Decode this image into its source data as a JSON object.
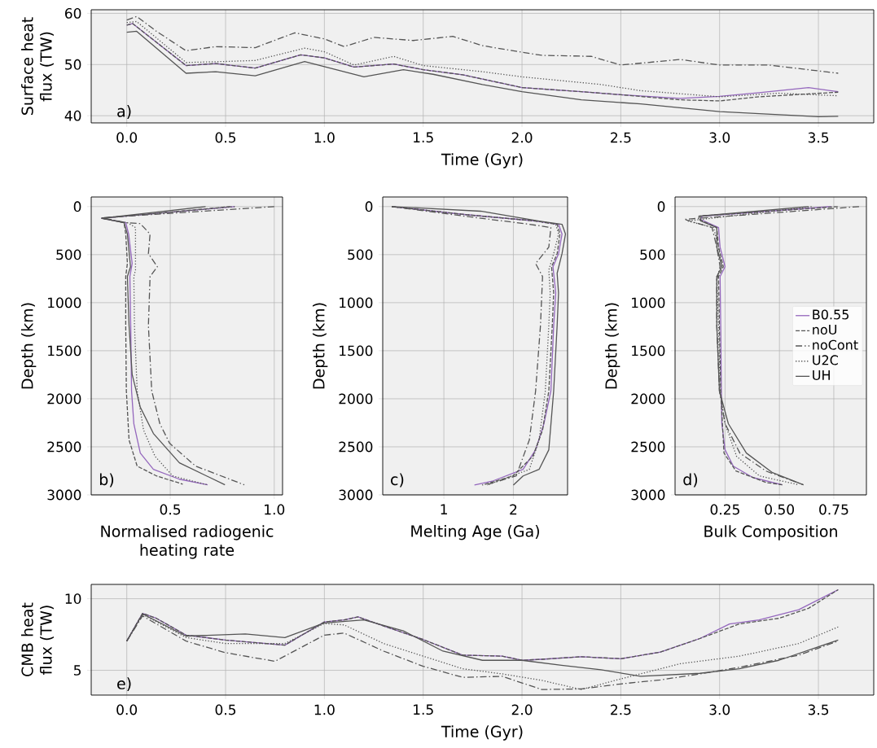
{
  "chart_data": [
    {
      "type": "line",
      "xlabel": "Time (Gyr)",
      "ylabel": "Surface heat flux (TW)",
      "annotations": [
        "a)"
      ],
      "grid": true,
      "xlim": [
        -0.18,
        3.78
      ],
      "ylim": [
        38.6,
        60.7
      ],
      "xticks": [
        {
          "value": 0,
          "label": "0.0"
        },
        0.5,
        {
          "value": 1,
          "label": "1.0"
        },
        1.5,
        {
          "value": 2,
          "label": "2.0"
        },
        2.5,
        {
          "value": 3,
          "label": "3.0"
        },
        3.5
      ],
      "yticks": [
        40,
        50,
        60
      ],
      "series": [
        {
          "color": "#9467bd",
          "line_style": "solid",
          "x": [
            0,
            0.03,
            0.3,
            0.45,
            0.65,
            0.88,
            1.0,
            1.15,
            1.35,
            1.5,
            1.7,
            2.0,
            2.3,
            2.5,
            2.8,
            3.0,
            3.2,
            3.45,
            3.6
          ],
          "values": [
            57.7,
            58,
            49.8,
            50.2,
            49.3,
            51.9,
            51.3,
            49.5,
            50.1,
            49,
            48,
            45.5,
            44.7,
            44.1,
            43.4,
            43.8,
            44.5,
            45.5,
            44.7
          ]
        },
        {
          "color": "#555555",
          "line_style": "dashed",
          "x": [
            0,
            0.03,
            0.3,
            0.45,
            0.65,
            0.88,
            1.0,
            1.15,
            1.35,
            1.5,
            1.7,
            2.0,
            2.3,
            2.5,
            2.8,
            3.0,
            3.2,
            3.6
          ],
          "values": [
            57.7,
            58,
            49.8,
            50.2,
            49.3,
            51.9,
            51.3,
            49.5,
            50.1,
            49,
            48,
            45.5,
            44.7,
            44.1,
            43.1,
            42.9,
            43.7,
            44.6
          ]
        },
        {
          "color": "#555555",
          "line_style": "dashdot",
          "x": [
            0,
            0.05,
            0.15,
            0.3,
            0.45,
            0.65,
            0.85,
            1.0,
            1.1,
            1.25,
            1.45,
            1.65,
            1.8,
            2.0,
            2.1,
            2.35,
            2.5,
            2.8,
            3.0,
            3.25,
            3.6
          ],
          "values": [
            58.7,
            59.4,
            56.5,
            52.7,
            53.5,
            53.3,
            56.2,
            55,
            53.5,
            55.3,
            54.7,
            55.5,
            53.7,
            52.4,
            51.8,
            51.6,
            49.9,
            51,
            49.9,
            49.9,
            48.3
          ]
        },
        {
          "color": "#555555",
          "line_style": "dotted",
          "x": [
            0,
            0.05,
            0.3,
            0.5,
            0.65,
            0.9,
            1.0,
            1.15,
            1.35,
            1.5,
            1.8,
            2.0,
            2.4,
            2.6,
            3.0,
            3.3,
            3.6
          ],
          "values": [
            58.2,
            58.4,
            50.4,
            50.6,
            50.8,
            53.2,
            52.5,
            49.9,
            51.6,
            49.8,
            48.6,
            47.6,
            46.1,
            44.9,
            43.7,
            44.4,
            43.9
          ]
        },
        {
          "color": "#555555",
          "line_style": "solid",
          "x": [
            0,
            0.05,
            0.3,
            0.45,
            0.65,
            0.9,
            1.0,
            1.2,
            1.4,
            1.55,
            1.8,
            2.0,
            2.3,
            2.6,
            3.0,
            3.2,
            3.5,
            3.6
          ],
          "values": [
            56.3,
            56.5,
            48.3,
            48.6,
            47.8,
            50.6,
            49.6,
            47.6,
            49,
            48.1,
            46.1,
            44.7,
            43.1,
            42.3,
            40.8,
            40.4,
            39.8,
            39.9
          ]
        }
      ]
    },
    {
      "type": "line",
      "xlabel": "Normalised radiogenic heating rate",
      "ylabel": "Depth (km)",
      "annotations": [
        "b)"
      ],
      "grid": true,
      "xlim": [
        0.12,
        1.04
      ],
      "ylim": [
        3000,
        -100
      ],
      "xticks": [
        0.5,
        {
          "value": 1,
          "label": "1.0"
        }
      ],
      "yticks": [
        0,
        500,
        1000,
        1500,
        2000,
        2500,
        3000
      ],
      "series": [
        {
          "color": "#9467bd",
          "line_style": "solid",
          "x": [
            0.81,
            0.17,
            0.286,
            0.3,
            0.317,
            0.306,
            0.31,
            0.314,
            0.325,
            0.356,
            0.419,
            0.544,
            0.68
          ],
          "values": [
            0,
            122,
            167,
            286,
            592,
            728,
            1238,
            1918,
            2259,
            2565,
            2735,
            2837,
            2895
          ]
        },
        {
          "color": "#555555",
          "line_style": "dashed",
          "x": [
            0.79,
            0.17,
            0.278,
            0.286,
            0.294,
            0.286,
            0.286,
            0.289,
            0.302,
            0.341,
            0.434,
            0.56
          ],
          "values": [
            0,
            122,
            167,
            286,
            592,
            728,
            1238,
            1918,
            2429,
            2701,
            2803,
            2888
          ]
        },
        {
          "color": "#555555",
          "line_style": "dashdot",
          "x": [
            1.0,
            0.17,
            0.286,
            0.356,
            0.403,
            0.395,
            0.438,
            0.403,
            0.395,
            0.411,
            0.45,
            0.497,
            0.622,
            0.856
          ],
          "values": [
            0,
            116,
            167,
            177,
            286,
            490,
            626,
            728,
            1238,
            1918,
            2259,
            2463,
            2701,
            2895
          ]
        },
        {
          "color": "#555555",
          "line_style": "dotted",
          "x": [
            0.81,
            0.17,
            0.294,
            0.333,
            0.333,
            0.325,
            0.328,
            0.341,
            0.372,
            0.427,
            0.512,
            0.677
          ],
          "values": [
            0,
            122,
            167,
            218,
            660,
            728,
            1238,
            1918,
            2327,
            2599,
            2803,
            2895
          ]
        },
        {
          "color": "#555555",
          "line_style": "solid",
          "x": [
            0.67,
            0.17,
            0.278,
            0.294,
            0.309,
            0.294,
            0.302,
            0.317,
            0.356,
            0.419,
            0.544,
            0.763
          ],
          "values": [
            0,
            122,
            167,
            286,
            626,
            728,
            1238,
            1748,
            2088,
            2361,
            2667,
            2895
          ]
        }
      ]
    },
    {
      "type": "line",
      "xlabel": "Melting Age (Ga)",
      "ylabel": "Depth (km)",
      "annotations": [
        "c)"
      ],
      "grid": true,
      "xlim": [
        0.12,
        2.78
      ],
      "ylim": [
        3000,
        -100
      ],
      "xticks": [
        1,
        2
      ],
      "yticks": [
        0,
        500,
        1000,
        1500,
        2000,
        2500,
        3000
      ],
      "series": [
        {
          "color": "#9467bd",
          "line_style": "solid",
          "x": [
            0.25,
            1.29,
            2.32,
            2.65,
            2.7,
            2.65,
            2.57,
            2.61,
            2.58,
            2.54,
            2.44,
            2.32,
            2.14,
            1.71,
            1.44
          ],
          "values": [
            0,
            82,
            150,
            184,
            286,
            490,
            626,
            898,
            1238,
            1918,
            2259,
            2531,
            2735,
            2854,
            2898
          ]
        },
        {
          "color": "#555555",
          "line_style": "dashed",
          "x": [
            0.25,
            1.29,
            2.32,
            2.63,
            2.67,
            2.63,
            2.55,
            2.58,
            2.56,
            2.51,
            2.42,
            2.28,
            1.995,
            1.55
          ],
          "values": [
            0,
            82,
            150,
            184,
            286,
            490,
            626,
            898,
            1238,
            1918,
            2327,
            2599,
            2803,
            2898
          ]
        },
        {
          "color": "#555555",
          "line_style": "dashdot",
          "x": [
            0.25,
            1.29,
            2.23,
            2.54,
            2.51,
            2.32,
            2.42,
            2.39,
            2.32,
            2.23,
            2.04,
            1.6
          ],
          "values": [
            0,
            99,
            184,
            218,
            422,
            592,
            728,
            1238,
            1918,
            2429,
            2803,
            2898
          ]
        },
        {
          "color": "#555555",
          "line_style": "dotted",
          "x": [
            0.25,
            1.29,
            2.32,
            2.61,
            2.65,
            2.58,
            2.51,
            2.53,
            2.51,
            2.46,
            2.37,
            2.23,
            1.62
          ],
          "values": [
            0,
            82,
            150,
            184,
            286,
            490,
            660,
            898,
            1238,
            1918,
            2429,
            2735,
            2898
          ]
        },
        {
          "color": "#555555",
          "line_style": "solid",
          "x": [
            0.25,
            1.53,
            2.37,
            2.7,
            2.75,
            2.7,
            2.63,
            2.65,
            2.63,
            2.58,
            2.51,
            2.37,
            2.14,
            2.0
          ],
          "values": [
            0,
            48,
            150,
            184,
            286,
            490,
            694,
            898,
            1238,
            1918,
            2531,
            2735,
            2803,
            2898
          ]
        }
      ]
    },
    {
      "type": "line",
      "xlabel": "Bulk Composition",
      "ylabel": "Depth (km)",
      "annotations": [
        "d)"
      ],
      "grid": true,
      "legend": "right",
      "xlim": [
        0.02,
        0.9
      ],
      "ylim": [
        3000,
        -100
      ],
      "xticks": [
        0.25,
        {
          "value": 0.5,
          "label": "0.50"
        },
        0.75
      ],
      "yticks": [
        0,
        500,
        1000,
        1500,
        2000,
        2500,
        3000
      ],
      "series": [
        {
          "name": "B0.55",
          "color": "#9467bd",
          "line_style": "solid",
          "x": [
            0.738,
            0.145,
            0.137,
            0.22,
            0.227,
            0.25,
            0.227,
            0.23,
            0.233,
            0.235,
            0.25,
            0.288,
            0.378,
            0.513
          ],
          "values": [
            0,
            99,
            133,
            218,
            422,
            626,
            728,
            1238,
            1918,
            2259,
            2531,
            2701,
            2820,
            2895
          ]
        },
        {
          "name": "noU",
          "color": "#555555",
          "line_style": "dashed",
          "x": [
            0.768,
            0.13,
            0.13,
            0.212,
            0.22,
            0.242,
            0.22,
            0.224,
            0.23,
            0.245,
            0.3,
            0.438,
            0.513
          ],
          "values": [
            0,
            99,
            133,
            218,
            422,
            626,
            728,
            1238,
            1918,
            2565,
            2752,
            2871,
            2895
          ]
        },
        {
          "name": "noCont",
          "color": "#555555",
          "line_style": "dashdot",
          "x": [
            0.866,
            0.062,
            0.19,
            0.212,
            0.227,
            0.212,
            0.212,
            0.224,
            0.25,
            0.318,
            0.438,
            0.61
          ],
          "values": [
            0,
            133,
            218,
            422,
            626,
            762,
            1238,
            1918,
            2259,
            2565,
            2752,
            2895
          ]
        },
        {
          "name": "U2C",
          "color": "#555555",
          "line_style": "dotted",
          "x": [
            0.648,
            0.077,
            0.197,
            0.22,
            0.235,
            0.212,
            0.22,
            0.227,
            0.25,
            0.303,
            0.408,
            0.588
          ],
          "values": [
            0,
            150,
            218,
            422,
            626,
            728,
            1238,
            1918,
            2259,
            2599,
            2803,
            2895
          ]
        },
        {
          "name": "UH",
          "color": "#555555",
          "line_style": "solid",
          "x": [
            0.633,
            0.137,
            0.137,
            0.212,
            0.212,
            0.235,
            0.212,
            0.212,
            0.224,
            0.265,
            0.348,
            0.468,
            0.61
          ],
          "values": [
            0,
            99,
            150,
            218,
            422,
            626,
            728,
            1238,
            1918,
            2259,
            2565,
            2769,
            2895
          ]
        }
      ]
    },
    {
      "type": "line",
      "xlabel": "Time (Gyr)",
      "ylabel": "CMB heat flux (TW)",
      "annotations": [
        "e)"
      ],
      "grid": true,
      "xlim": [
        -0.18,
        3.78
      ],
      "ylim": [
        3.27,
        11.0
      ],
      "xticks": [
        {
          "value": 0,
          "label": "0.0"
        },
        0.5,
        {
          "value": 1,
          "label": "1.0"
        },
        1.5,
        {
          "value": 2,
          "label": "2.0"
        },
        2.5,
        {
          "value": 3,
          "label": "3.0"
        },
        3.5
      ],
      "yticks": [
        5,
        10
      ],
      "series": [
        {
          "color": "#9467bd",
          "line_style": "solid",
          "x": [
            0,
            0.08,
            0.15,
            0.3,
            0.5,
            0.8,
            1.0,
            1.1,
            1.17,
            1.3,
            1.5,
            1.7,
            1.9,
            2.0,
            2.1,
            2.3,
            2.5,
            2.7,
            2.9,
            3.05,
            3.2,
            3.4,
            3.6
          ],
          "values": [
            7.04,
            8.98,
            8.63,
            7.46,
            7.11,
            6.76,
            8.38,
            8.52,
            8.73,
            8.1,
            7.15,
            6.06,
            5.99,
            5.7,
            5.77,
            5.95,
            5.81,
            6.27,
            7.22,
            8.24,
            8.52,
            9.23,
            10.63
          ]
        },
        {
          "color": "#555555",
          "line_style": "dashed",
          "x": [
            0,
            0.08,
            0.15,
            0.3,
            0.5,
            0.8,
            1.0,
            1.1,
            1.17,
            1.3,
            1.5,
            1.7,
            1.9,
            2.0,
            2.1,
            2.3,
            2.5,
            2.7,
            2.9,
            3.1,
            3.3,
            3.45,
            3.6
          ],
          "values": [
            7.04,
            8.98,
            8.63,
            7.46,
            7.11,
            6.76,
            8.38,
            8.52,
            8.73,
            8.1,
            7.15,
            6.06,
            5.99,
            5.7,
            5.77,
            5.95,
            5.81,
            6.27,
            7.22,
            8.24,
            8.63,
            9.33,
            10.63
          ]
        },
        {
          "color": "#555555",
          "line_style": "dashdot",
          "x": [
            0,
            0.08,
            0.3,
            0.5,
            0.75,
            1.0,
            1.1,
            1.3,
            1.5,
            1.7,
            1.9,
            2.1,
            2.3,
            2.5,
            2.7,
            2.9,
            3.1,
            3.4,
            3.6
          ],
          "values": [
            7.04,
            8.8,
            7.04,
            6.23,
            5.63,
            7.46,
            7.6,
            6.34,
            5.28,
            4.51,
            4.58,
            3.66,
            3.7,
            4.05,
            4.33,
            4.75,
            5.21,
            6.06,
            7.04
          ]
        },
        {
          "color": "#555555",
          "line_style": "dotted",
          "x": [
            0,
            0.08,
            0.3,
            0.5,
            0.8,
            1.0,
            1.1,
            1.3,
            1.5,
            1.7,
            1.9,
            2.1,
            2.3,
            2.5,
            2.8,
            3.1,
            3.4,
            3.6
          ],
          "values": [
            7.04,
            8.91,
            7.29,
            6.87,
            6.87,
            8.27,
            8.17,
            6.87,
            5.99,
            5.11,
            4.75,
            4.3,
            3.66,
            4.4,
            5.46,
            5.99,
            6.87,
            8.03
          ]
        },
        {
          "color": "#555555",
          "line_style": "solid",
          "x": [
            0,
            0.08,
            0.3,
            0.6,
            0.8,
            1.0,
            1.2,
            1.4,
            1.6,
            1.8,
            2.0,
            2.2,
            2.4,
            2.6,
            2.9,
            3.1,
            3.3,
            3.6
          ],
          "values": [
            7.04,
            8.94,
            7.39,
            7.54,
            7.29,
            8.31,
            8.52,
            7.75,
            6.34,
            5.7,
            5.7,
            5.35,
            5.04,
            4.58,
            4.79,
            5.11,
            5.7,
            7.11
          ]
        }
      ]
    }
  ]
}
